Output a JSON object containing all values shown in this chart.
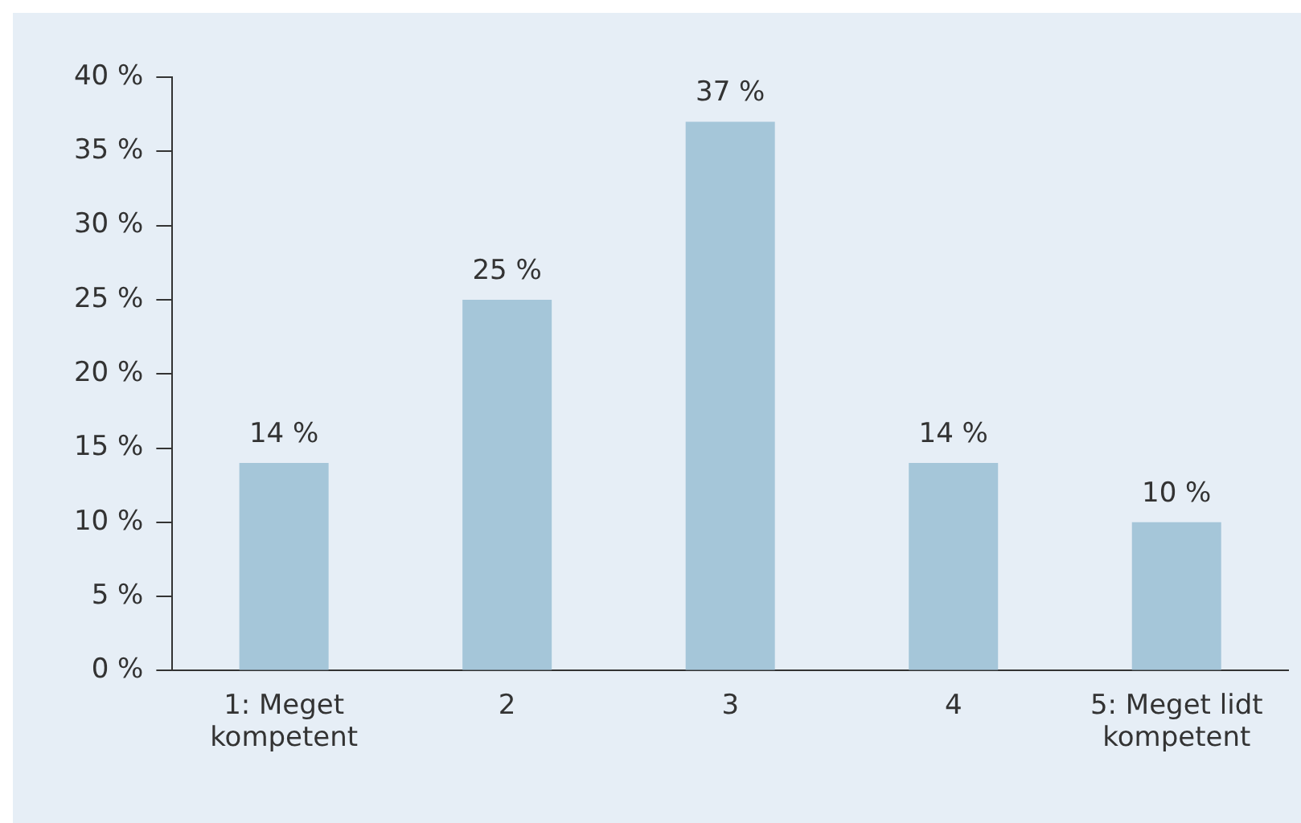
{
  "chart_data": {
    "type": "bar",
    "categories": [
      "1: Meget kompetent",
      "2",
      "3",
      "4",
      "5: Meget lidt kompetent"
    ],
    "values": [
      14,
      25,
      37,
      14,
      10
    ],
    "value_labels": [
      "14 %",
      "25 %",
      "37 %",
      "14 %",
      "10 %"
    ],
    "color": "#a5c6d9",
    "ylim": [
      0,
      40
    ],
    "yticks": [
      {
        "value": 0,
        "label": "0 %"
      },
      {
        "value": 5,
        "label": "5 %"
      },
      {
        "value": 10,
        "label": "10 %"
      },
      {
        "value": 15,
        "label": "15 %"
      },
      {
        "value": 20,
        "label": "20 %"
      },
      {
        "value": 25,
        "label": "25 %"
      },
      {
        "value": 30,
        "label": "30 %"
      },
      {
        "value": 35,
        "label": "35 %"
      },
      {
        "value": 40,
        "label": "40 %"
      }
    ],
    "grid": false,
    "legend": false
  }
}
